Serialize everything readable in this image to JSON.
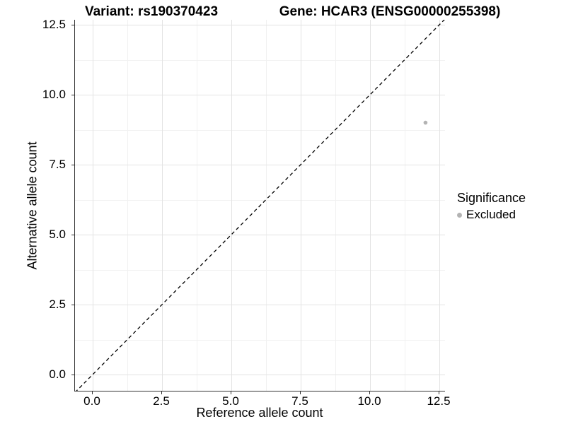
{
  "colors": {
    "background": "#ffffff",
    "axis_line": "#333333",
    "grid_major": "#e3e3e3",
    "grid_minor": "#f1f1f1",
    "reference_line": "#000000",
    "excluded_point": "#b3b3b3"
  },
  "chart_data": {
    "type": "scatter",
    "title_left": "Variant: rs190370423",
    "title_right": "Gene: HCAR3 (ENSG00000255398)",
    "xlabel": "Reference allele count",
    "ylabel": "Alternative allele count",
    "x_ticks": {
      "values": [
        0,
        2.5,
        5,
        7.5,
        10,
        12.5
      ],
      "labels": [
        "0.0",
        "2.5",
        "5.0",
        "7.5",
        "10.0",
        "12.5"
      ]
    },
    "y_ticks": {
      "values": [
        0,
        2.5,
        5,
        7.5,
        10,
        12.5
      ],
      "labels": [
        "0.0",
        "2.5",
        "5.0",
        "7.5",
        "10.0",
        "12.5"
      ]
    },
    "x_minor_breaks": [
      1.25,
      3.75,
      6.25,
      8.75,
      11.25
    ],
    "y_minor_breaks": [
      1.25,
      3.75,
      6.25,
      8.75,
      11.25
    ],
    "xlim": [
      -0.64,
      12.73
    ],
    "ylim": [
      -0.61,
      12.68
    ],
    "grid": true,
    "reference_line": {
      "kind": "identity y=x",
      "style": "dashed",
      "color": "#000000"
    },
    "series": [
      {
        "name": "Excluded",
        "color": "#b3b3b3",
        "points": [
          {
            "x": 12,
            "y": 9
          }
        ]
      }
    ],
    "legend": {
      "title": "Significance",
      "position": "right",
      "entries": [
        {
          "label": "Excluded",
          "color": "#b3b3b3"
        }
      ]
    }
  }
}
